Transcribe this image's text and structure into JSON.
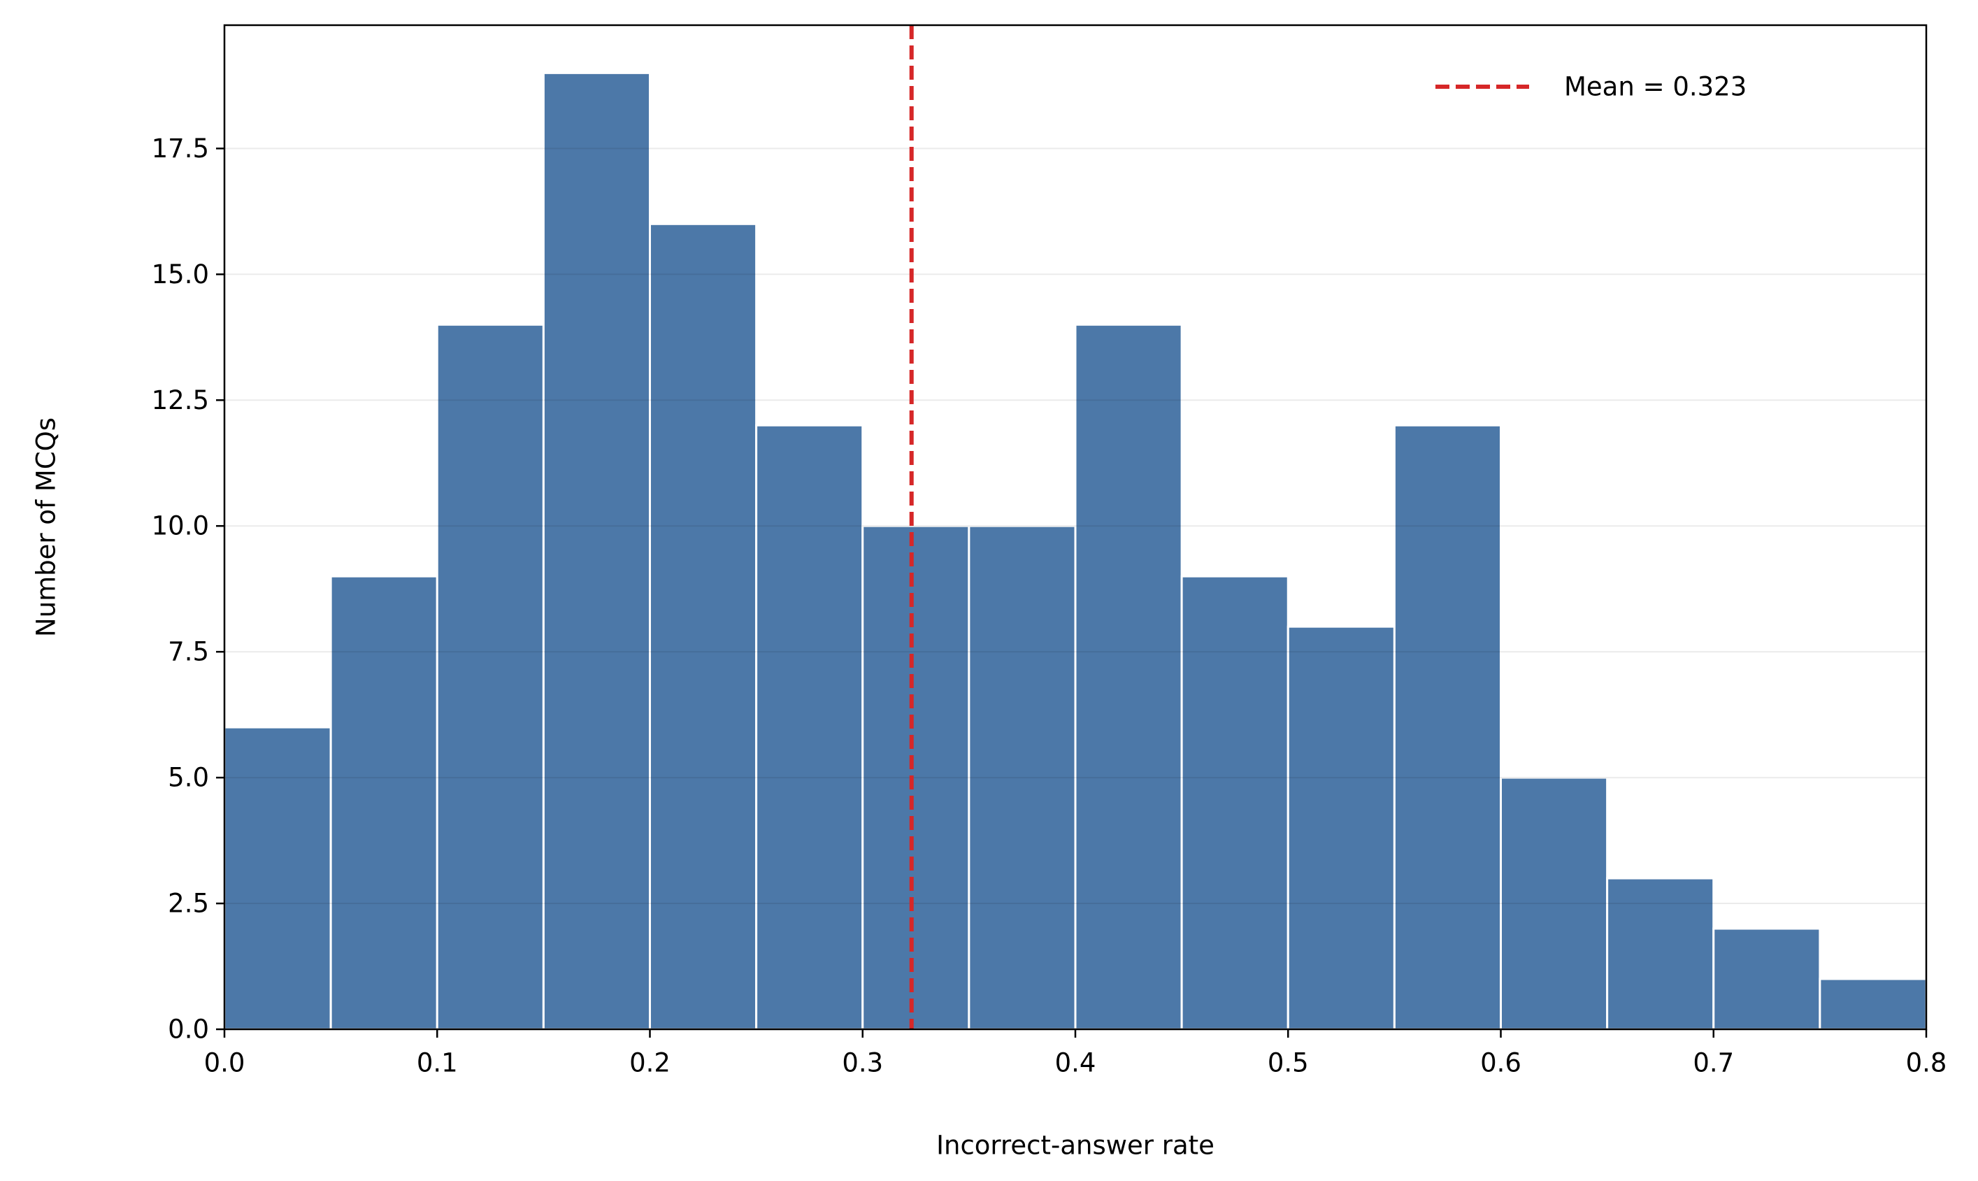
{
  "chart_data": {
    "type": "histogram",
    "x_label": "Incorrect-answer rate",
    "y_label": "Number of MCQs",
    "bins": [
      0.0,
      0.05,
      0.1,
      0.15,
      0.2,
      0.25,
      0.3,
      0.35,
      0.4,
      0.45,
      0.5,
      0.55,
      0.6,
      0.65,
      0.7,
      0.75,
      0.8
    ],
    "values": [
      6,
      9,
      14,
      19,
      16,
      12,
      10,
      10,
      14,
      9,
      8,
      12,
      5,
      3,
      2,
      1
    ],
    "color": "#4c78a8",
    "mean": 0.323,
    "mean_label": "Mean = 0.323",
    "mean_color": "#d62728",
    "xlim": [
      0.0,
      0.8
    ],
    "xticks": [
      {
        "value": 0.0,
        "label": "0.0"
      },
      0.1,
      0.2,
      0.3,
      0.4,
      0.5,
      0.6,
      0.7,
      0.8
    ],
    "ylim": [
      0,
      19.95
    ],
    "yticks": [
      {
        "value": 0,
        "label": "0.0"
      },
      2.5,
      {
        "value": 5,
        "label": "5.0"
      },
      7.5,
      {
        "value": 10,
        "label": "10.0"
      },
      12.5,
      {
        "value": 15,
        "label": "15.0"
      },
      17.5
    ],
    "grid": true,
    "legend": "upper right"
  }
}
